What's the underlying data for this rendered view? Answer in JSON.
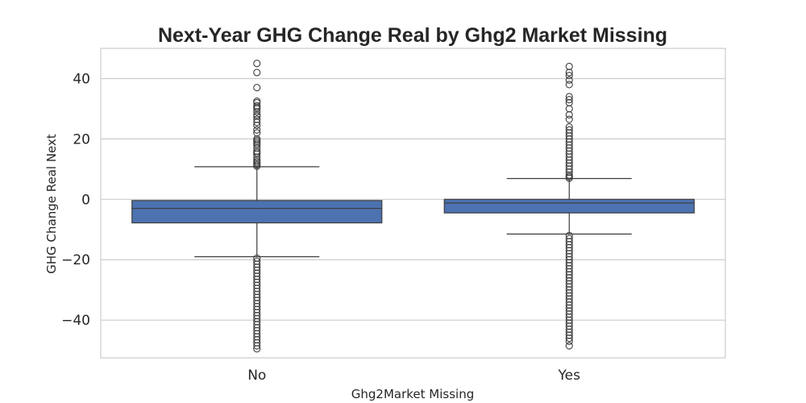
{
  "chart_data": {
    "type": "box",
    "title": "Next-Year GHG Change Real by Ghg2 Market Missing",
    "xlabel": "Ghg2Market Missing",
    "ylabel": "GHG Change Real Next",
    "categories": [
      "No",
      "Yes"
    ],
    "ylim": [
      -52.5,
      50
    ],
    "yticks": [
      40,
      20,
      0,
      -20,
      -40
    ],
    "grid": "horizontal",
    "box_color": "#4c72b0",
    "line_color": "#3d3d3d",
    "boxes": [
      {
        "category": "No",
        "q1": -7.8,
        "median": -3.0,
        "q3": -0.4,
        "whisker_low": -19.0,
        "whisker_high": 10.8,
        "outliers_high": [
          11.0,
          11.5,
          12.0,
          12.5,
          13.0,
          14.0,
          15.0,
          15.5,
          16.0,
          17.0,
          18.0,
          18.5,
          19.0,
          19.5,
          20.0,
          22.0,
          23.0,
          24.5,
          25.5,
          26.5,
          27.5,
          28.0,
          29.0,
          30.0,
          30.5,
          31.0,
          32.0,
          32.5,
          37.0,
          42.0,
          45.0
        ],
        "outliers_low": [
          -19.5,
          -20.5,
          -21.5,
          -22.5,
          -23.5,
          -24.5,
          -25.5,
          -26.5,
          -27.5,
          -28.5,
          -29.5,
          -30.5,
          -31.5,
          -32.5,
          -33.5,
          -34.5,
          -35.5,
          -36.5,
          -37.5,
          -38.5,
          -39.5,
          -40.5,
          -41.5,
          -42.5,
          -43.5,
          -44.5,
          -45.5,
          -46.5,
          -47.5,
          -48.5,
          -49.5
        ]
      },
      {
        "category": "Yes",
        "q1": -4.5,
        "median": -1.2,
        "q3": 0.0,
        "whisker_low": -11.5,
        "whisker_high": 6.9,
        "outliers_high": [
          7.0,
          7.5,
          8.0,
          9.0,
          10.0,
          11.0,
          12.0,
          13.0,
          14.0,
          15.0,
          16.0,
          17.0,
          18.0,
          19.0,
          20.0,
          21.0,
          22.0,
          23.0,
          24.0,
          26.5,
          28.0,
          30.0,
          32.0,
          33.0,
          34.0,
          38.0,
          39.5,
          41.0,
          42.0,
          44.0
        ],
        "outliers_low": [
          -12.0,
          -13.0,
          -14.0,
          -15.0,
          -16.0,
          -17.0,
          -18.0,
          -19.0,
          -20.0,
          -21.0,
          -22.0,
          -23.0,
          -24.0,
          -25.0,
          -26.0,
          -27.0,
          -28.0,
          -29.0,
          -30.0,
          -31.0,
          -32.0,
          -33.0,
          -34.0,
          -35.0,
          -36.0,
          -37.0,
          -38.0,
          -39.0,
          -40.0,
          -41.0,
          -42.0,
          -43.0,
          -44.0,
          -45.0,
          -46.0,
          -47.0,
          -48.5
        ]
      }
    ]
  }
}
